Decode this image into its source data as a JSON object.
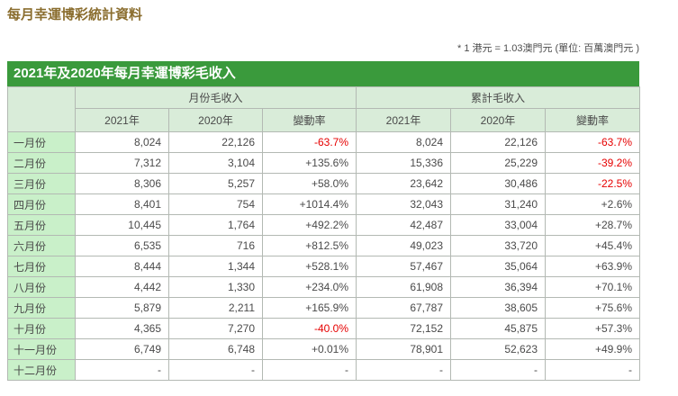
{
  "page": {
    "title": "每月幸運博彩統計資料",
    "note": "* 1 港元 = 1.03澳門元 (單位: 百萬澳門元 )"
  },
  "table": {
    "caption": "2021年及2020年每月幸運博彩毛收入",
    "group_headers": [
      "月份毛收入",
      "累計毛收入"
    ],
    "year_headers": [
      "2021年",
      "2020年",
      "變動率",
      "2021年",
      "2020年",
      "變動率"
    ],
    "rows": [
      {
        "month": "一月份",
        "values": [
          "8,024",
          "22,126",
          "-63.7%",
          "8,024",
          "22,126",
          "-63.7%"
        ]
      },
      {
        "month": "二月份",
        "values": [
          "7,312",
          "3,104",
          "+135.6%",
          "15,336",
          "25,229",
          "-39.2%"
        ]
      },
      {
        "month": "三月份",
        "values": [
          "8,306",
          "5,257",
          "+58.0%",
          "23,642",
          "30,486",
          "-22.5%"
        ]
      },
      {
        "month": "四月份",
        "values": [
          "8,401",
          "754",
          "+1014.4%",
          "32,043",
          "31,240",
          "+2.6%"
        ]
      },
      {
        "month": "五月份",
        "values": [
          "10,445",
          "1,764",
          "+492.2%",
          "42,487",
          "33,004",
          "+28.7%"
        ]
      },
      {
        "month": "六月份",
        "values": [
          "6,535",
          "716",
          "+812.5%",
          "49,023",
          "33,720",
          "+45.4%"
        ]
      },
      {
        "month": "七月份",
        "values": [
          "8,444",
          "1,344",
          "+528.1%",
          "57,467",
          "35,064",
          "+63.9%"
        ]
      },
      {
        "month": "八月份",
        "values": [
          "4,442",
          "1,330",
          "+234.0%",
          "61,908",
          "36,394",
          "+70.1%"
        ]
      },
      {
        "month": "九月份",
        "values": [
          "5,879",
          "2,211",
          "+165.9%",
          "67,787",
          "38,605",
          "+75.6%"
        ]
      },
      {
        "month": "十月份",
        "values": [
          "4,365",
          "7,270",
          "-40.0%",
          "72,152",
          "45,875",
          "+57.3%"
        ]
      },
      {
        "month": "十一月份",
        "values": [
          "6,749",
          "6,748",
          "+0.01%",
          "78,901",
          "52,623",
          "+49.9%"
        ]
      },
      {
        "month": "十二月份",
        "values": [
          "-",
          "-",
          "-",
          "-",
          "-",
          "-"
        ]
      }
    ]
  },
  "colors": {
    "title_brown": "#8a6d2e",
    "caption_green": "#3a9a3c",
    "header_green": "#d9ecd9",
    "month_cell_green": "#c9f0c9",
    "negative_red": "#e60000",
    "text_gray": "#4a4a4a",
    "border_gray": "#b3b9b3"
  }
}
